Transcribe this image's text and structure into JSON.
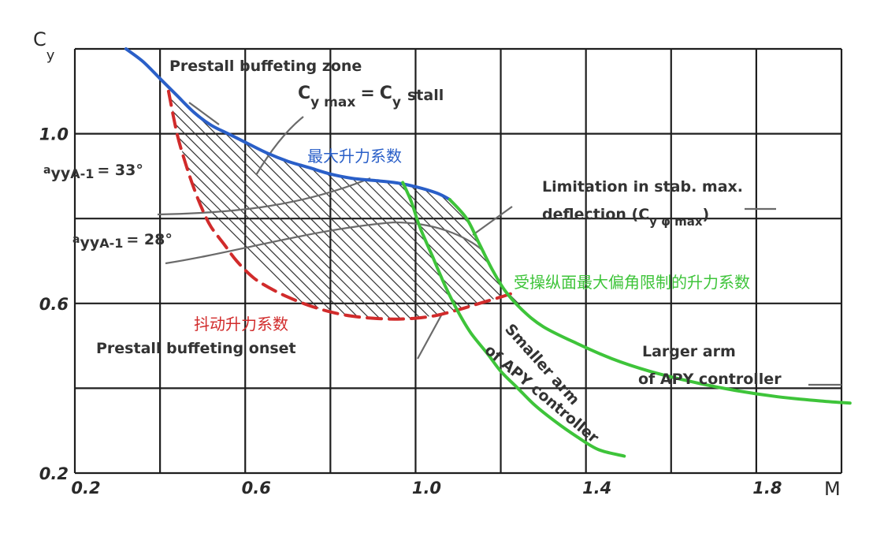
{
  "chart_data": {
    "type": "line",
    "xlabel": "M",
    "ylabel": "Cy",
    "ylabel_sub": "y",
    "ylabel_main": "C",
    "xlim": [
      0.2,
      2.0
    ],
    "ylim": [
      0.2,
      1.2
    ],
    "x_ticks": [
      0.2,
      0.6,
      1.0,
      1.4,
      1.8
    ],
    "x_tick_labels": [
      "0.2",
      "0.6",
      "1.0",
      "1.4",
      "1.8"
    ],
    "y_ticks": [
      0.2,
      0.6,
      1.0
    ],
    "y_tick_labels": [
      "0.2",
      "0.6",
      "1.0"
    ],
    "grid_x": [
      0.2,
      0.4,
      0.6,
      0.8,
      1.0,
      1.2,
      1.4,
      1.6,
      1.8,
      2.0
    ],
    "grid_y": [
      0.2,
      0.4,
      0.6,
      0.8,
      1.0,
      1.2
    ],
    "grid": true,
    "series": [
      {
        "name": "最大升力系数",
        "color": "#2a5fc8",
        "style": "solid",
        "x": [
          0.32,
          0.36,
          0.4,
          0.44,
          0.48,
          0.52,
          0.56,
          0.6,
          0.65,
          0.7,
          0.75,
          0.8,
          0.85,
          0.9,
          0.95,
          1.0,
          1.05,
          1.08
        ],
        "y": [
          1.2,
          1.17,
          1.13,
          1.09,
          1.05,
          1.02,
          1.0,
          0.98,
          0.955,
          0.935,
          0.92,
          0.905,
          0.895,
          0.89,
          0.885,
          0.875,
          0.86,
          0.845
        ]
      },
      {
        "name": "抖动升力系数",
        "color": "#d12b2b",
        "style": "dashed",
        "x": [
          0.42,
          0.44,
          0.46,
          0.48,
          0.5,
          0.52,
          0.55,
          0.58,
          0.62,
          0.66,
          0.7,
          0.75,
          0.8,
          0.85,
          0.9,
          0.95,
          1.0,
          1.05,
          1.1,
          1.15,
          1.2,
          1.23
        ],
        "y": [
          1.1,
          1.0,
          0.93,
          0.87,
          0.82,
          0.78,
          0.74,
          0.7,
          0.66,
          0.635,
          0.615,
          0.595,
          0.58,
          0.57,
          0.565,
          0.563,
          0.565,
          0.572,
          0.585,
          0.6,
          0.615,
          0.625
        ]
      },
      {
        "name": "受操纵面最大偏角限制的升力系数",
        "color": "#3ec43a",
        "style": "solid",
        "x": [
          1.08,
          1.12,
          1.15,
          1.18,
          1.21,
          1.25,
          1.3,
          1.38,
          1.46,
          1.55,
          1.65,
          1.75,
          1.85,
          1.95,
          2.02
        ],
        "y": [
          0.845,
          0.8,
          0.74,
          0.68,
          0.63,
          0.585,
          0.545,
          0.505,
          0.47,
          0.44,
          0.415,
          0.395,
          0.38,
          0.37,
          0.365
        ]
      },
      {
        "name": "Smaller arm of APY controller",
        "color": "#3ec43a",
        "style": "solid",
        "x": [
          0.97,
          0.99,
          1.01,
          1.04,
          1.07,
          1.1,
          1.13,
          1.17,
          1.2,
          1.24,
          1.28,
          1.33,
          1.38,
          1.43,
          1.49
        ],
        "y": [
          0.885,
          0.84,
          0.78,
          0.71,
          0.64,
          0.58,
          0.53,
          0.48,
          0.44,
          0.4,
          0.36,
          0.32,
          0.285,
          0.255,
          0.24
        ]
      }
    ],
    "annotations": {
      "prestall_zone": "Prestall buffeting zone",
      "cymax_a": "C",
      "cymax_sub": "y max",
      "cymax_eq": "=",
      "cymax_b": "C",
      "cymax_sub2": "y",
      "cymax_stall": "stall",
      "alpha33_pre": "a",
      "alpha33_mid": "yy",
      "alpha33_sub": "A-1",
      "alpha33_val": "= 33°",
      "alpha28_pre": "a",
      "alpha28_mid": "yy",
      "alpha28_sub": "A-1",
      "alpha28_val": "= 28°",
      "limitation_1": "Limitation in stab. max.",
      "limitation_2": "deflection (C",
      "limitation_sub": "y φ max",
      "limitation_close": ")",
      "prestall_onset": "Prestall buffeting onset",
      "smaller_arm_1": "Smaller arm",
      "smaller_arm_2": "of APY controller",
      "larger_arm_1": "Larger arm",
      "larger_arm_2": "of APY controller",
      "cn_max_lift": "最大升力系数",
      "cn_buffet_lift": "抖动升力系数",
      "cn_limited_lift": "受操纵面最大偏角限制的升力系数"
    }
  }
}
